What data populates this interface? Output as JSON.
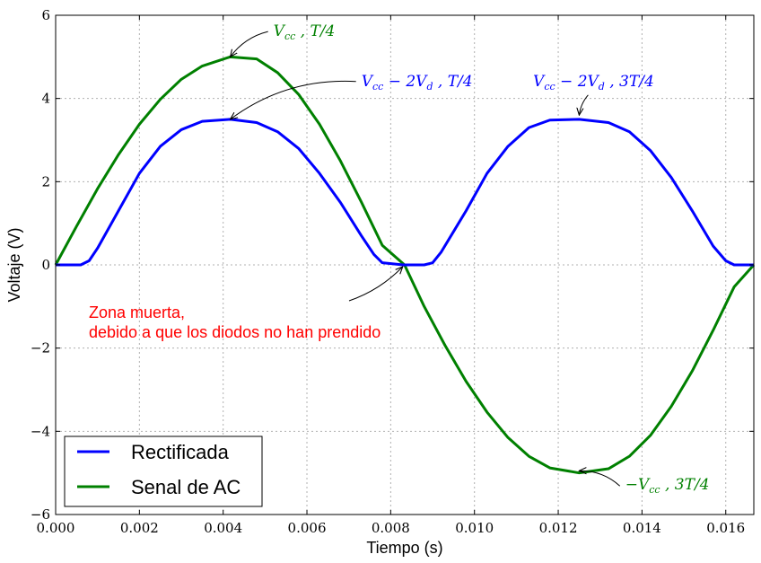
{
  "chart_data": {
    "type": "line",
    "xlabel": "Tiempo (s)",
    "ylabel": "Voltaje (V)",
    "xlim": [
      0,
      0.01667
    ],
    "ylim": [
      -6,
      6
    ],
    "x_ticks": [
      "0.000",
      "0.002",
      "0.004",
      "0.006",
      "0.008",
      "0.010",
      "0.012",
      "0.014",
      "0.016"
    ],
    "y_ticks": [
      "6",
      "4",
      "2",
      "0",
      "−2",
      "−4",
      "−6"
    ],
    "grid": true,
    "legend_position": "lower-left",
    "series": [
      {
        "name": "Rectificada",
        "color": "#0000ff",
        "x": [
          0,
          0.0006,
          0.0008,
          0.001,
          0.0015,
          0.002,
          0.0025,
          0.003,
          0.0035,
          0.00417,
          0.0048,
          0.0053,
          0.0058,
          0.0063,
          0.0068,
          0.0073,
          0.0076,
          0.0078,
          0.0083,
          0.0088,
          0.009,
          0.0092,
          0.0098,
          0.0103,
          0.0108,
          0.0113,
          0.0118,
          0.0125,
          0.0132,
          0.0137,
          0.0142,
          0.0147,
          0.0152,
          0.0157,
          0.016,
          0.0162,
          0.01667
        ],
        "y": [
          0,
          0,
          0.1,
          0.4,
          1.3,
          2.2,
          2.85,
          3.25,
          3.45,
          3.5,
          3.42,
          3.2,
          2.8,
          2.2,
          1.5,
          0.7,
          0.25,
          0.05,
          0,
          0,
          0.05,
          0.3,
          1.3,
          2.2,
          2.85,
          3.3,
          3.48,
          3.5,
          3.42,
          3.2,
          2.75,
          2.1,
          1.3,
          0.45,
          0.1,
          0,
          0
        ]
      },
      {
        "name": "Senal de AC",
        "color": "#008000",
        "x": [
          0,
          0.0005,
          0.001,
          0.0015,
          0.002,
          0.0025,
          0.003,
          0.0035,
          0.00417,
          0.0048,
          0.0053,
          0.0058,
          0.0063,
          0.0068,
          0.0073,
          0.0078,
          0.00833,
          0.0088,
          0.0093,
          0.0098,
          0.0103,
          0.0108,
          0.0113,
          0.0118,
          0.0125,
          0.0132,
          0.0137,
          0.0142,
          0.0147,
          0.0152,
          0.0157,
          0.0162,
          0.01667
        ],
        "y": [
          0,
          0.93,
          1.83,
          2.65,
          3.38,
          3.98,
          4.46,
          4.78,
          5.0,
          4.95,
          4.62,
          4.1,
          3.38,
          2.5,
          1.51,
          0.47,
          0,
          -1.0,
          -1.94,
          -2.8,
          -3.54,
          -4.15,
          -4.6,
          -4.88,
          -5.0,
          -4.9,
          -4.6,
          -4.1,
          -3.4,
          -2.55,
          -1.57,
          -0.53,
          0
        ]
      }
    ],
    "annotations": [
      {
        "text": "Vₑₑ , T/4",
        "label_main": "V",
        "label_sub": "cc",
        "label_rest": " , T/4",
        "color": "#008000",
        "x": 0.0052,
        "y": 5.5,
        "arrow_to": [
          0.00417,
          5.0
        ]
      },
      {
        "label_main": "V",
        "label_sub": "cc",
        "label_rest": " − 2V",
        "label_sub2": "d",
        "label_rest2": " , T/4",
        "color": "#0000ff",
        "x": 0.0073,
        "y": 4.3,
        "arrow_to": [
          0.00417,
          3.5
        ]
      },
      {
        "label_main": "V",
        "label_sub": "cc",
        "label_rest": " − 2V",
        "label_sub2": "d",
        "label_rest2": " , 3T/4",
        "color": "#0000ff",
        "x": 0.0114,
        "y": 4.3,
        "arrow_to": [
          0.0125,
          3.6
        ]
      },
      {
        "label_main": "−V",
        "label_sub": "cc",
        "label_rest": " , 3T/4",
        "color": "#008000",
        "x": 0.0136,
        "y": -5.4,
        "arrow_to": [
          0.0125,
          -4.95
        ]
      }
    ],
    "note": {
      "lines": [
        "Zona muerta,",
        "debido a que los diodos no han prendido"
      ],
      "color": "#ff0000",
      "arrow_to": [
        0.00833,
        0.0
      ]
    }
  }
}
